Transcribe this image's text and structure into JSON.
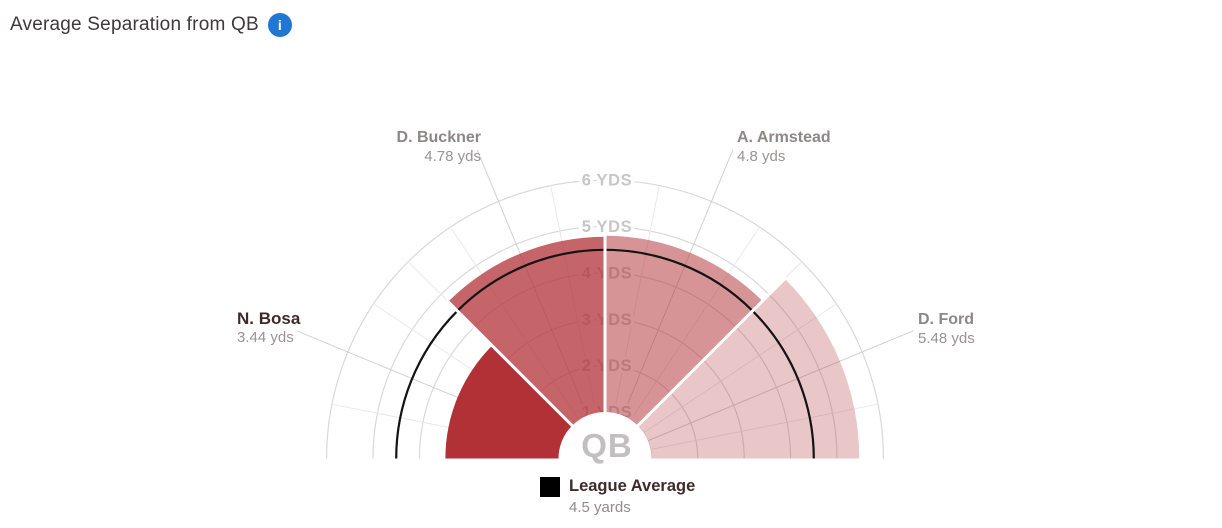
{
  "header": {
    "title": "Average Separation from QB",
    "info_icon_glyph": "i"
  },
  "chart_data": {
    "type": "polar_bar",
    "title": "Average Separation from QB",
    "unit": "yards",
    "angle_span_deg": [
      0,
      180
    ],
    "max_yards": 6,
    "ring_labels": [
      "1 YDS",
      "2 YDS",
      "3 YDS",
      "4 YDS",
      "5 YDS",
      "6 YDS"
    ],
    "center_label": "QB",
    "base_color": "#b13137",
    "grid": {
      "ring_color": "#d9d9d9",
      "spoke_color": "#e9e9e9",
      "leader_color": "#d1d1d1"
    },
    "league_average": {
      "label": "League Average",
      "value": 4.5,
      "value_label": "4.5 yards",
      "swatch_color": "#000000",
      "arc_color": "#141414"
    },
    "players": [
      {
        "name": "N. Bosa",
        "value": 3.44,
        "value_label": "3.44 yds",
        "angle_start": 180,
        "angle_end": 135,
        "fill_opacity": 1.0,
        "highlight": true
      },
      {
        "name": "D. Buckner",
        "value": 4.78,
        "value_label": "4.78 yds",
        "angle_start": 135,
        "angle_end": 90,
        "fill_opacity": 0.75,
        "highlight": false
      },
      {
        "name": "A. Armstead",
        "value": 4.8,
        "value_label": "4.8 yds",
        "angle_start": 90,
        "angle_end": 45,
        "fill_opacity": 0.52,
        "highlight": false
      },
      {
        "name": "D. Ford",
        "value": 5.48,
        "value_label": "5.48 yds",
        "angle_start": 45,
        "angle_end": 0,
        "fill_opacity": 0.28,
        "highlight": false
      }
    ]
  }
}
